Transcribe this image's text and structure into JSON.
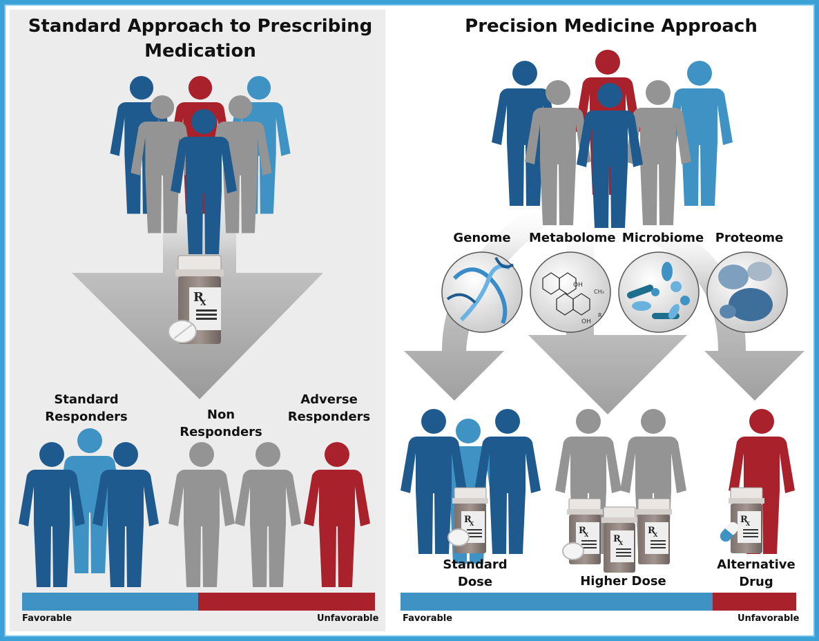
{
  "left": {
    "title": "Standard Approach to Prescribing Medication",
    "groups": [
      "Standard Responders",
      "Non Responders",
      "Adverse Responders"
    ],
    "scale": {
      "favorable": "Favorable",
      "unfavorable": "Unfavorable"
    },
    "rx": "RX"
  },
  "right": {
    "title": "Precision Medicine Approach",
    "omics": [
      "Genome",
      "Metabolome",
      "Microbiome",
      "Proteome"
    ],
    "outcomes": [
      "Standard Dose",
      "Higher Dose",
      "Alternative Drug"
    ],
    "scale": {
      "favorable": "Favorable",
      "unfavorable": "Unfavorable"
    },
    "molecule_labels": {
      "oh_top": "OH",
      "oh_bottom": "OH",
      "ch3": "CH₃",
      "r": "R"
    }
  },
  "colors": {
    "blue": "#1e5a8e",
    "light_blue": "#3e93c4",
    "gray": "#949494",
    "red": "#a8212b",
    "frame": "#3aa0d6"
  }
}
